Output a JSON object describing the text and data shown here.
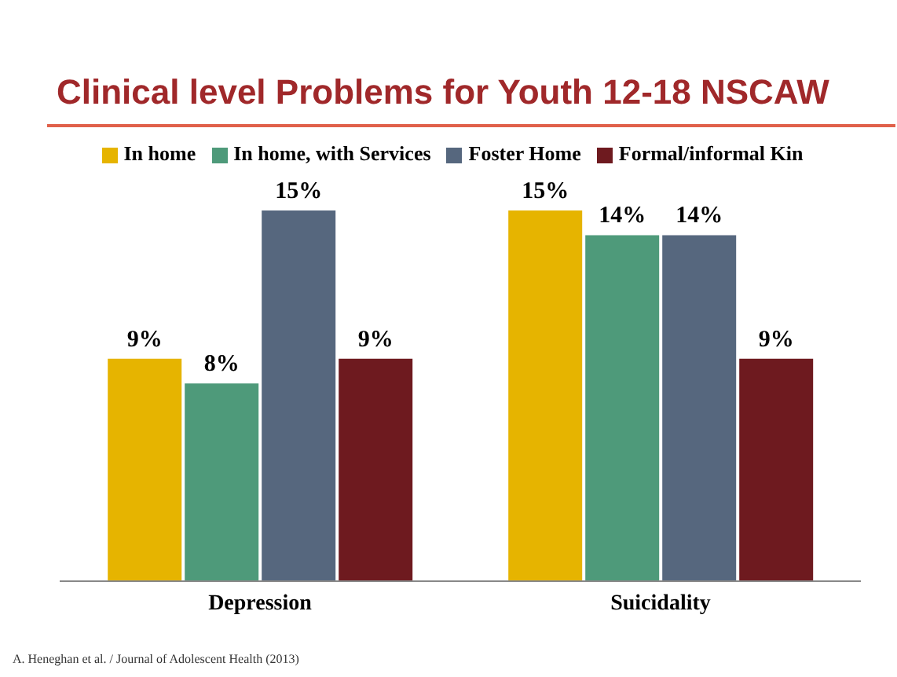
{
  "chart_data": {
    "type": "bar",
    "title": "Clinical level Problems for Youth 12-18 NSCAW",
    "categories": [
      "Depression",
      "Suicidality"
    ],
    "series": [
      {
        "name": "In home",
        "color": "#e6b400",
        "values": [
          9,
          15
        ],
        "value_labels": [
          "9%",
          "15%"
        ]
      },
      {
        "name": "In home, with Services",
        "color": "#4e9a7a",
        "values": [
          8,
          14
        ],
        "value_labels": [
          "8%",
          "14%"
        ]
      },
      {
        "name": "Foster Home",
        "color": "#56677e",
        "values": [
          15,
          14
        ],
        "value_labels": [
          "15%",
          "14%"
        ]
      },
      {
        "name": "Formal/informal Kin",
        "color": "#6e1a1f",
        "values": [
          9,
          9
        ],
        "value_labels": [
          "9%",
          "9%"
        ]
      }
    ],
    "legend": "top",
    "grid": false,
    "annotations": [
      "A. Heneghan et al. / Journal of Adolescent Health (2013)"
    ]
  }
}
